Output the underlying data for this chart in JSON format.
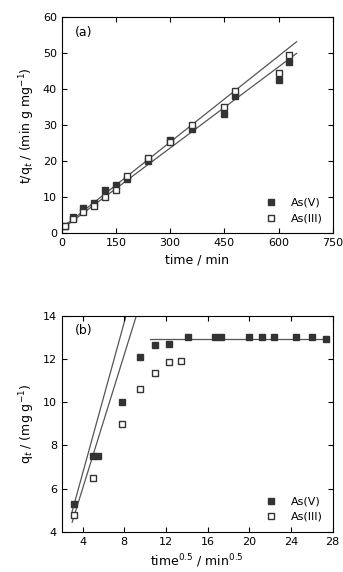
{
  "panel_a": {
    "label": "(a)",
    "AsV_x": [
      10,
      30,
      60,
      90,
      120,
      150,
      180,
      240,
      300,
      360,
      450,
      480,
      600,
      630
    ],
    "AsV_y": [
      2.0,
      4.5,
      7.0,
      8.5,
      12.0,
      13.5,
      15.0,
      20.0,
      26.0,
      29.0,
      33.0,
      38.0,
      42.5,
      47.5
    ],
    "AsIII_x": [
      10,
      30,
      60,
      90,
      120,
      150,
      180,
      240,
      300,
      360,
      450,
      480,
      600,
      630
    ],
    "AsIII_y": [
      2.0,
      4.0,
      6.0,
      7.5,
      10.0,
      12.0,
      16.0,
      21.0,
      25.5,
      30.0,
      35.0,
      39.5,
      44.5,
      49.5
    ],
    "AsV_line_slope": 0.0795,
    "AsV_line_intercept": 1.5,
    "AsIII_line_slope": 0.075,
    "AsIII_line_intercept": 1.2,
    "line_x_start": 0,
    "line_x_end": 650,
    "xlabel": "time / min",
    "ylabel": "t/q$_t$ / (min g mg$^{-1}$)",
    "xlim": [
      0,
      750
    ],
    "ylim": [
      0,
      60
    ],
    "xticks": [
      0,
      150,
      300,
      450,
      600,
      750
    ],
    "yticks": [
      0,
      10,
      20,
      30,
      40,
      50,
      60
    ]
  },
  "panel_b": {
    "label": "(b)",
    "AsV_x": [
      3.16,
      5.0,
      5.48,
      7.75,
      9.49,
      10.95,
      12.25,
      14.14,
      16.73,
      17.32,
      20.0,
      21.21,
      22.36,
      24.49,
      25.98,
      27.39
    ],
    "AsV_y": [
      5.3,
      7.5,
      7.5,
      10.0,
      12.1,
      12.65,
      12.7,
      13.0,
      13.0,
      13.0,
      13.0,
      13.0,
      13.0,
      13.0,
      13.0,
      12.9
    ],
    "AsIII_x": [
      3.16,
      5.0,
      7.75,
      9.49,
      10.95,
      12.25,
      13.41
    ],
    "AsIII_y": [
      4.8,
      6.5,
      9.0,
      10.6,
      11.35,
      11.85,
      11.9
    ],
    "AsV_fit_x": [
      3.0,
      11.2
    ],
    "AsV_fit_slope": 1.75,
    "AsV_fit_intercept": -0.3,
    "AsIII_fit_x": [
      3.0,
      13.4
    ],
    "AsIII_fit_slope": 1.55,
    "AsIII_fit_intercept": -0.2,
    "AsV_hline_y": 12.9,
    "AsV_hline_x": [
      10.5,
      27.5
    ],
    "xlabel": "time$^{0.5}$ / min$^{0.5}$",
    "ylabel": "q$_t$ / (mg g$^{-1}$)",
    "xlim": [
      2,
      28
    ],
    "ylim": [
      4,
      14
    ],
    "xticks": [
      4,
      8,
      12,
      16,
      20,
      24,
      28
    ],
    "yticks": [
      4,
      6,
      8,
      10,
      12,
      14
    ]
  },
  "line_color": "#555555",
  "marker_color_filled": "#333333",
  "marker_color_open": "#333333",
  "marker_size": 5,
  "font_size_label": 9,
  "font_size_tick": 8,
  "font_size_legend": 8,
  "font_size_panel": 9
}
